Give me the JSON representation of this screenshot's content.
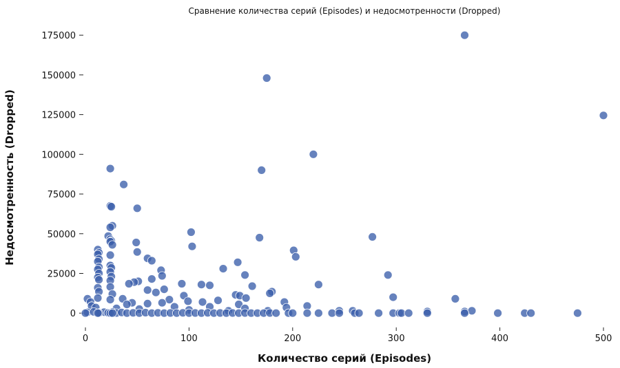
{
  "chart_data": {
    "type": "scatter",
    "title": "Сравнение количества серий (Episodes) и недосмотренности (Dropped)",
    "xlabel": "Количество серий (Episodes)",
    "ylabel": "Недосмотренность (Dropped)",
    "xlim": [
      0,
      500
    ],
    "ylim": [
      -9000,
      182000
    ],
    "xticks": [
      0,
      100,
      200,
      300,
      400,
      500
    ],
    "yticks": [
      0,
      25000,
      50000,
      75000,
      100000,
      125000,
      150000,
      175000
    ],
    "xtick_labels": [
      "0",
      "100",
      "200",
      "300",
      "400",
      "500"
    ],
    "ytick_labels": [
      "0",
      "25000",
      "50000",
      "75000",
      "100000",
      "125000",
      "150000",
      "175000"
    ],
    "grid": false,
    "point_color": "#3b5fab",
    "points": [
      [
        366,
        175000
      ],
      [
        175,
        148000
      ],
      [
        500,
        124500
      ],
      [
        220,
        100000
      ],
      [
        24,
        91000
      ],
      [
        170,
        90000
      ],
      [
        37,
        81000
      ],
      [
        24,
        67500
      ],
      [
        25,
        67000
      ],
      [
        50,
        66000
      ],
      [
        26,
        55000
      ],
      [
        24,
        54000
      ],
      [
        102,
        51000
      ],
      [
        277,
        48000
      ],
      [
        168,
        47500
      ],
      [
        22,
        48500
      ],
      [
        24,
        46500
      ],
      [
        25,
        45500
      ],
      [
        24,
        45000
      ],
      [
        26,
        43000
      ],
      [
        49,
        44500
      ],
      [
        103,
        42000
      ],
      [
        12,
        40000
      ],
      [
        13,
        38000
      ],
      [
        12,
        37000
      ],
      [
        201,
        39500
      ],
      [
        50,
        38500
      ],
      [
        24,
        36500
      ],
      [
        203,
        35500
      ],
      [
        60,
        34500
      ],
      [
        64,
        33000
      ],
      [
        13,
        34000
      ],
      [
        12,
        32500
      ],
      [
        147,
        32000
      ],
      [
        24,
        30000
      ],
      [
        25,
        28500
      ],
      [
        13,
        29000
      ],
      [
        133,
        28000
      ],
      [
        12,
        27500
      ],
      [
        73,
        27000
      ],
      [
        24,
        26000
      ],
      [
        13,
        25000
      ],
      [
        292,
        24000
      ],
      [
        154,
        24000
      ],
      [
        74,
        23500
      ],
      [
        25,
        23000
      ],
      [
        12,
        22500
      ],
      [
        13,
        21000
      ],
      [
        64,
        21500
      ],
      [
        24,
        20500
      ],
      [
        51,
        20000
      ],
      [
        47,
        19500
      ],
      [
        42,
        18500
      ],
      [
        93,
        18500
      ],
      [
        225,
        18000
      ],
      [
        112,
        18000
      ],
      [
        120,
        17500
      ],
      [
        161,
        17000
      ],
      [
        24,
        16500
      ],
      [
        12,
        16000
      ],
      [
        76,
        15000
      ],
      [
        60,
        14500
      ],
      [
        180,
        13500
      ],
      [
        178,
        12500
      ],
      [
        13,
        13500
      ],
      [
        26,
        12000
      ],
      [
        68,
        13000
      ],
      [
        145,
        11500
      ],
      [
        149,
        11000
      ],
      [
        155,
        9500
      ],
      [
        297,
        10000
      ],
      [
        357,
        9000
      ],
      [
        36,
        9000
      ],
      [
        95,
        11000
      ],
      [
        81,
        8500
      ],
      [
        128,
        8000
      ],
      [
        12,
        9500
      ],
      [
        24,
        8500
      ],
      [
        192,
        7000
      ],
      [
        99,
        7500
      ],
      [
        113,
        7000
      ],
      [
        45,
        6500
      ],
      [
        60,
        6000
      ],
      [
        74,
        6500
      ],
      [
        2,
        9000
      ],
      [
        5,
        7000
      ],
      [
        40,
        5500
      ],
      [
        6,
        4500
      ],
      [
        148,
        5500
      ],
      [
        214,
        4500
      ],
      [
        86,
        4000
      ],
      [
        120,
        4000
      ],
      [
        10,
        3500
      ],
      [
        30,
        3000
      ],
      [
        52,
        2500
      ],
      [
        154,
        3000
      ],
      [
        194,
        3500
      ],
      [
        100,
        2000
      ],
      [
        138,
        1500
      ],
      [
        176,
        1500
      ],
      [
        245,
        1500
      ],
      [
        258,
        1500
      ],
      [
        366,
        1000
      ],
      [
        373,
        1500
      ],
      [
        330,
        1000
      ],
      [
        2,
        500
      ],
      [
        8,
        800
      ],
      [
        14,
        300
      ],
      [
        18,
        600
      ],
      [
        22,
        200
      ],
      [
        26,
        700
      ],
      [
        30,
        100
      ],
      [
        35,
        400
      ],
      [
        40,
        0
      ],
      [
        46,
        200
      ],
      [
        52,
        0
      ],
      [
        58,
        300
      ],
      [
        64,
        0
      ],
      [
        70,
        200
      ],
      [
        76,
        0
      ],
      [
        82,
        100
      ],
      [
        88,
        0
      ],
      [
        94,
        200
      ],
      [
        100,
        0
      ],
      [
        106,
        100
      ],
      [
        112,
        0
      ],
      [
        118,
        200
      ],
      [
        124,
        0
      ],
      [
        130,
        100
      ],
      [
        136,
        0
      ],
      [
        142,
        100
      ],
      [
        148,
        0
      ],
      [
        154,
        100
      ],
      [
        160,
        0
      ],
      [
        166,
        0
      ],
      [
        172,
        0
      ],
      [
        178,
        100
      ],
      [
        184,
        0
      ],
      [
        196,
        0
      ],
      [
        200,
        0
      ],
      [
        214,
        0
      ],
      [
        225,
        0
      ],
      [
        238,
        0
      ],
      [
        245,
        0
      ],
      [
        260,
        0
      ],
      [
        264,
        0
      ],
      [
        283,
        0
      ],
      [
        297,
        0
      ],
      [
        303,
        0
      ],
      [
        305,
        0
      ],
      [
        312,
        0
      ],
      [
        330,
        0
      ],
      [
        366,
        0
      ],
      [
        398,
        0
      ],
      [
        424,
        0
      ],
      [
        430,
        0
      ],
      [
        475,
        0
      ],
      [
        13,
        0
      ],
      [
        24,
        0
      ],
      [
        26,
        0
      ],
      [
        12,
        0
      ],
      [
        0,
        0
      ]
    ]
  }
}
